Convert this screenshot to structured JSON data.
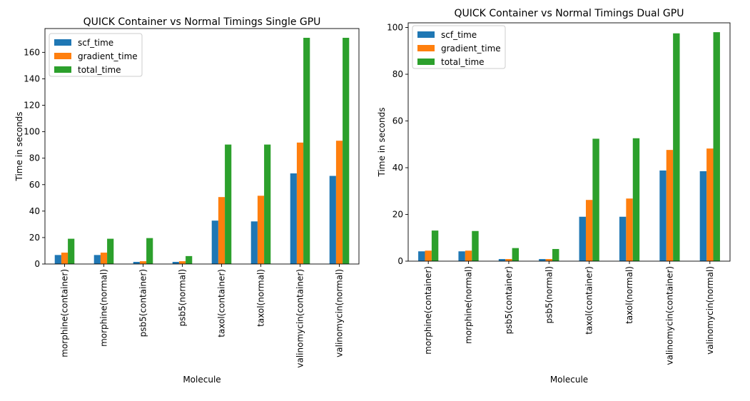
{
  "chart_data": [
    {
      "type": "bar",
      "title": "QUICK Container vs Normal Timings Single GPU",
      "xlabel": "Molecule",
      "ylabel": "Time in seconds",
      "ylim": [
        0,
        178
      ],
      "yticks": [
        0,
        20,
        40,
        60,
        80,
        100,
        120,
        140,
        160
      ],
      "legend_position": "top-left",
      "grid": false,
      "categories": [
        "morphine(container)",
        "morphine(normal)",
        "psb5(container)",
        "psb5(normal)",
        "taxol(container)",
        "taxol(normal)",
        "valinomycin(container)",
        "valinomycin(normal)"
      ],
      "series": [
        {
          "name": "scf_time",
          "color": "#1f77b4",
          "values": [
            6.8,
            6.8,
            1.6,
            1.6,
            32.8,
            32.2,
            68.5,
            66.6
          ]
        },
        {
          "name": "gradient_time",
          "color": "#ff7f0e",
          "values": [
            8.6,
            8.6,
            2.1,
            2.1,
            50.6,
            51.6,
            91.8,
            93.2
          ]
        },
        {
          "name": "total_time",
          "color": "#2ca02c",
          "values": [
            19.1,
            19.1,
            19.6,
            6.0,
            90.3,
            90.3,
            171.0,
            171.0
          ]
        }
      ]
    },
    {
      "type": "bar",
      "title": "QUICK Container vs Normal Timings Dual GPU",
      "xlabel": "Molecule",
      "ylabel": "Time in seconds",
      "ylim": [
        0,
        102
      ],
      "yticks": [
        0,
        20,
        40,
        60,
        80,
        100
      ],
      "legend_position": "top-left",
      "grid": false,
      "categories": [
        "morphine(container)",
        "morphine(normal)",
        "psb5(container)",
        "psb5(normal)",
        "taxol(container)",
        "taxol(normal)",
        "valinomycin(container)",
        "valinomycin(normal)"
      ],
      "series": [
        {
          "name": "scf_time",
          "color": "#1f77b4",
          "values": [
            4.2,
            4.2,
            0.9,
            0.9,
            19.0,
            19.0,
            38.8,
            38.5
          ]
        },
        {
          "name": "gradient_time",
          "color": "#ff7f0e",
          "values": [
            4.5,
            4.5,
            0.9,
            0.9,
            26.2,
            26.8,
            47.6,
            48.2
          ]
        },
        {
          "name": "total_time",
          "color": "#2ca02c",
          "values": [
            13.1,
            12.9,
            5.6,
            5.2,
            52.4,
            52.6,
            97.5,
            98.0
          ]
        }
      ]
    }
  ]
}
